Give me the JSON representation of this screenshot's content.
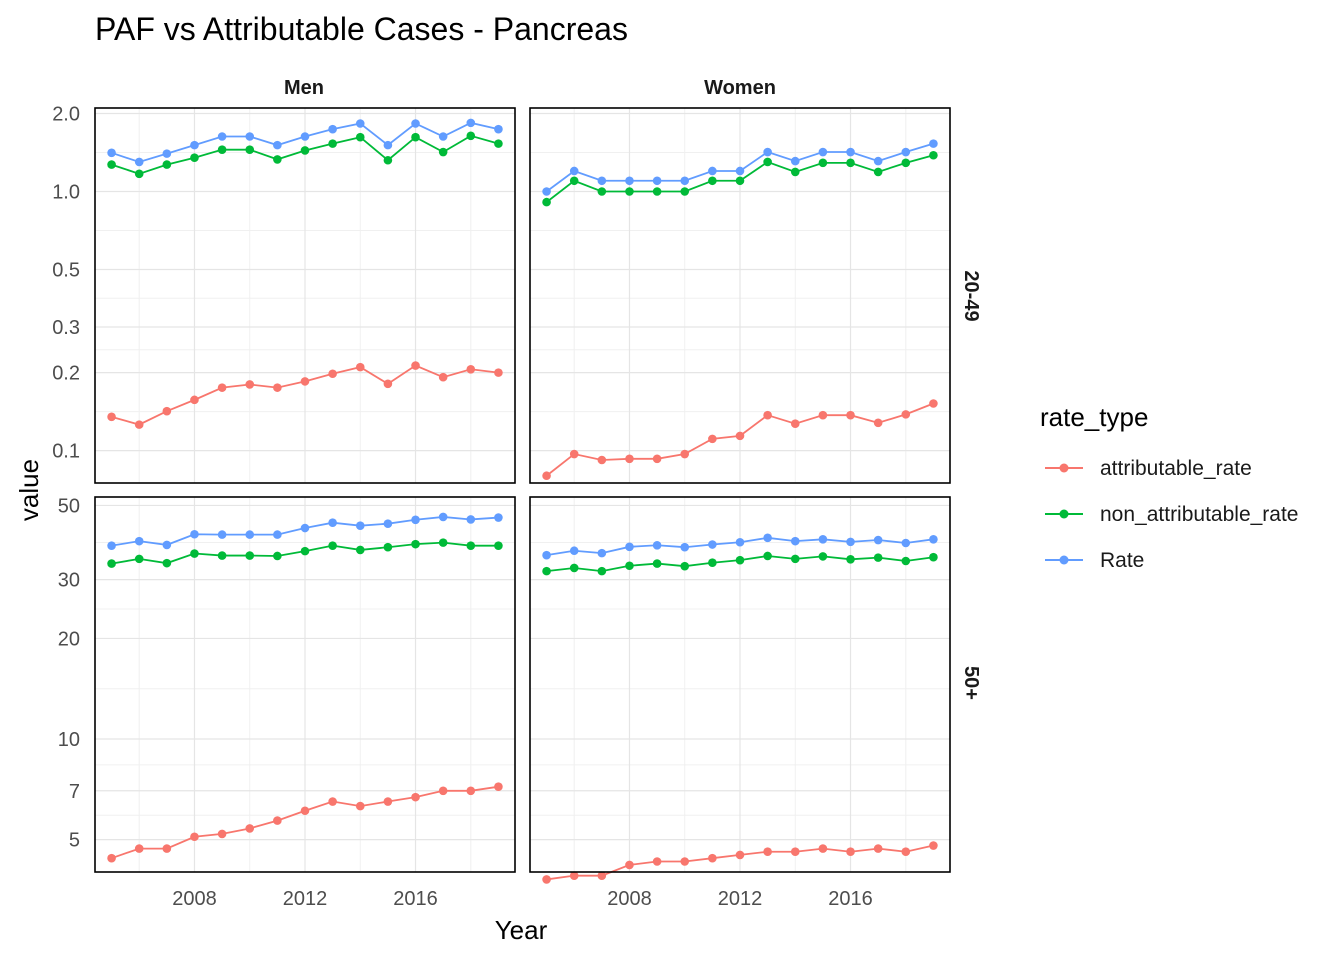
{
  "chart_data": {
    "type": "line",
    "title": "PAF vs Attributable Cases - Pancreas",
    "xlabel": "Year",
    "ylabel": "value",
    "x_ticks": [
      "2008",
      "2012",
      "2016"
    ],
    "x_tick_values": [
      2008,
      2012,
      2016
    ],
    "xlim": [
      2004.4,
      2019.6
    ],
    "y_scale": "log",
    "grid": true,
    "facet_columns": [
      "Men",
      "Women"
    ],
    "facet_rows": [
      "20-49",
      "50+"
    ],
    "legend": {
      "title": "rate_type",
      "position": "right",
      "entries": [
        "attributable_rate",
        "non_attributable_rate",
        "Rate"
      ]
    },
    "colors": {
      "attributable_rate": "#F8766D",
      "non_attributable_rate": "#00BA38",
      "Rate": "#619CFF"
    },
    "x": [
      2005,
      2006,
      2007,
      2008,
      2009,
      2010,
      2011,
      2012,
      2013,
      2014,
      2015,
      2016,
      2017,
      2018,
      2019
    ],
    "rows": [
      {
        "label": "20-49",
        "ylim": [
          0.075,
          2.1
        ],
        "y_ticks": [
          "0.1",
          "0.2",
          "0.3",
          "0.5",
          "1.0",
          "2.0"
        ],
        "y_tick_values": [
          0.1,
          0.2,
          0.3,
          0.5,
          1.0,
          2.0
        ]
      },
      {
        "label": "50+",
        "ylim": [
          4.0,
          53
        ],
        "y_ticks": [
          "5",
          "7",
          "10",
          "20",
          "30",
          "50"
        ],
        "y_tick_values": [
          5,
          7,
          10,
          20,
          30,
          50
        ]
      }
    ],
    "panels": [
      {
        "column": "Men",
        "row": "20-49",
        "series": [
          {
            "name": "attributable_rate",
            "values": [
              0.135,
              0.126,
              0.142,
              0.157,
              0.175,
              0.18,
              0.175,
              0.185,
              0.198,
              0.21,
              0.181,
              0.213,
              0.192,
              0.206,
              0.2
            ]
          },
          {
            "name": "non_attributable_rate",
            "values": [
              1.27,
              1.17,
              1.27,
              1.35,
              1.45,
              1.45,
              1.33,
              1.44,
              1.53,
              1.62,
              1.32,
              1.62,
              1.42,
              1.64,
              1.53
            ]
          },
          {
            "name": "Rate",
            "values": [
              1.41,
              1.3,
              1.4,
              1.51,
              1.63,
              1.63,
              1.51,
              1.63,
              1.74,
              1.83,
              1.51,
              1.83,
              1.63,
              1.84,
              1.74
            ]
          }
        ]
      },
      {
        "column": "Women",
        "row": "20-49",
        "series": [
          {
            "name": "attributable_rate",
            "values": [
              0.08,
              0.097,
              0.092,
              0.093,
              0.093,
              0.097,
              0.111,
              0.114,
              0.137,
              0.127,
              0.137,
              0.137,
              0.128,
              0.138,
              0.152
            ]
          },
          {
            "name": "non_attributable_rate",
            "values": [
              0.91,
              1.1,
              1.0,
              1.0,
              1.0,
              1.0,
              1.1,
              1.1,
              1.3,
              1.19,
              1.29,
              1.29,
              1.19,
              1.29,
              1.38
            ]
          },
          {
            "name": "Rate",
            "values": [
              1.0,
              1.2,
              1.1,
              1.1,
              1.1,
              1.1,
              1.2,
              1.2,
              1.42,
              1.31,
              1.42,
              1.42,
              1.31,
              1.42,
              1.53
            ]
          }
        ]
      },
      {
        "column": "Men",
        "row": "50+",
        "series": [
          {
            "name": "attributable_rate",
            "values": [
              4.4,
              4.7,
              4.7,
              5.1,
              5.2,
              5.4,
              5.7,
              6.1,
              6.5,
              6.3,
              6.5,
              6.7,
              7.0,
              7.0,
              7.2
            ]
          },
          {
            "name": "non_attributable_rate",
            "values": [
              33.5,
              34.6,
              33.6,
              35.9,
              35.4,
              35.4,
              35.3,
              36.5,
              37.9,
              36.8,
              37.5,
              38.3,
              38.7,
              37.9,
              37.9
            ]
          },
          {
            "name": "Rate",
            "values": [
              37.9,
              39.1,
              38.1,
              41.0,
              40.9,
              40.9,
              40.9,
              42.8,
              44.4,
              43.5,
              44.1,
              45.3,
              46.2,
              45.4,
              46.0
            ]
          }
        ]
      },
      {
        "column": "Women",
        "row": "50+",
        "series": [
          {
            "name": "attributable_rate",
            "values": [
              3.8,
              3.9,
              3.9,
              4.2,
              4.3,
              4.3,
              4.4,
              4.5,
              4.6,
              4.6,
              4.7,
              4.6,
              4.7,
              4.6,
              4.8
            ]
          },
          {
            "name": "non_attributable_rate",
            "values": [
              31.8,
              32.5,
              31.8,
              33.0,
              33.5,
              32.9,
              33.7,
              34.3,
              35.3,
              34.6,
              35.2,
              34.5,
              34.9,
              34.1,
              35.0
            ]
          },
          {
            "name": "Rate",
            "values": [
              35.5,
              36.6,
              36.0,
              37.6,
              38.0,
              37.5,
              38.2,
              38.8,
              40.0,
              39.1,
              39.6,
              38.9,
              39.4,
              38.6,
              39.6
            ]
          }
        ]
      }
    ]
  }
}
